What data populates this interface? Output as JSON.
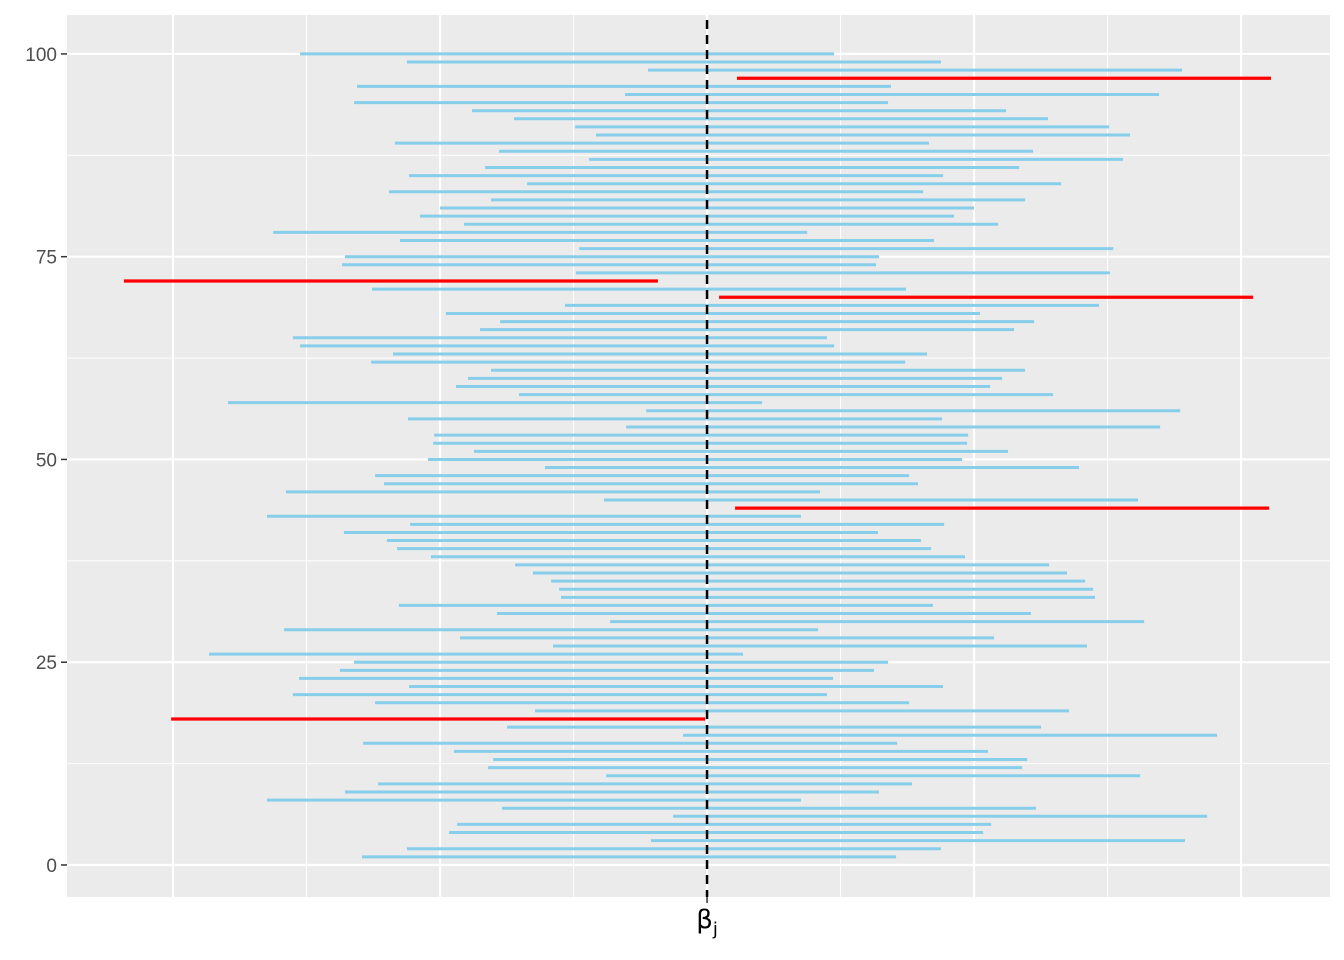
{
  "chart_data": {
    "type": "interval",
    "title": "",
    "xlabel": "",
    "ylabel": "",
    "x_tick_label": {
      "main": "β",
      "sub": "j"
    },
    "x_tick_value": 0,
    "y_ticks": [
      0,
      25,
      50,
      75,
      100
    ],
    "y_tick_labels": [
      "0",
      "25",
      "50",
      "75",
      "100"
    ],
    "xlim": [
      -2.397,
      2.333
    ],
    "ylim": [
      -3.95,
      104.8
    ],
    "x_major_grid": [
      -2,
      -1,
      0,
      1,
      2
    ],
    "x_minor_grid": [
      -1.5,
      -0.5,
      0.5,
      1.5
    ],
    "grid": true,
    "reference_line": {
      "x": 0,
      "style": "dashed",
      "color": "#000000"
    },
    "colors": {
      "covers": "#87CEEB",
      "misses": "#FF0000",
      "panel": "#EBEBEB",
      "grid": "#FFFFFF"
    },
    "index": [
      1,
      2,
      3,
      4,
      5,
      6,
      7,
      8,
      9,
      10,
      11,
      12,
      13,
      14,
      15,
      16,
      17,
      18,
      19,
      20,
      21,
      22,
      23,
      24,
      25,
      26,
      27,
      28,
      29,
      30,
      31,
      32,
      33,
      34,
      35,
      36,
      37,
      38,
      39,
      40,
      41,
      42,
      43,
      44,
      45,
      46,
      47,
      48,
      49,
      50,
      51,
      52,
      53,
      54,
      55,
      56,
      57,
      58,
      59,
      60,
      61,
      62,
      63,
      64,
      65,
      66,
      67,
      68,
      69,
      70,
      71,
      72,
      73,
      74,
      75,
      76,
      77,
      78,
      79,
      80,
      81,
      82,
      83,
      84,
      85,
      86,
      87,
      88,
      89,
      90,
      91,
      92,
      93,
      94,
      95,
      96,
      97,
      98,
      99,
      100
    ],
    "lower": [
      -1.292,
      -1.124,
      -0.21,
      -0.966,
      -0.936,
      -0.127,
      -0.768,
      -1.648,
      -1.356,
      -1.232,
      -0.378,
      -0.82,
      -0.801,
      -0.948,
      -1.288,
      -0.09,
      -0.749,
      -2.007,
      -0.644,
      -1.243,
      -1.551,
      -1.116,
      -1.528,
      -1.375,
      -1.322,
      -1.865,
      -0.577,
      -0.925,
      -1.584,
      -0.363,
      -0.787,
      -1.154,
      -0.547,
      -0.554,
      -0.584,
      -0.652,
      -0.719,
      -1.034,
      -1.161,
      -1.199,
      -1.36,
      -1.112,
      -1.648,
      0.105,
      -0.386,
      -1.577,
      -1.21,
      -1.243,
      -0.607,
      -1.045,
      -0.873,
      -1.026,
      -1.022,
      -0.303,
      -1.12,
      -0.228,
      -1.794,
      -0.704,
      -0.94,
      -0.895,
      -0.809,
      -1.258,
      -1.176,
      -1.524,
      -1.551,
      -0.85,
      -0.775,
      -0.978,
      -0.532,
      0.045,
      -1.255,
      -2.184,
      -0.491,
      -1.367,
      -1.356,
      -0.479,
      -1.15,
      -1.625,
      -0.91,
      -1.075,
      -1.0,
      -0.809,
      -1.191,
      -0.674,
      -1.116,
      -0.831,
      -0.442,
      -0.779,
      -1.169,
      -0.416,
      -0.494,
      -0.723,
      -0.88,
      -1.322,
      -0.307,
      -1.311,
      0.112,
      -0.221,
      -1.124,
      -1.524
    ],
    "upper": [
      0.708,
      0.876,
      1.79,
      1.034,
      1.064,
      1.873,
      1.232,
      0.352,
      0.644,
      0.768,
      1.622,
      1.18,
      1.199,
      1.052,
      0.712,
      1.91,
      1.251,
      -0.007,
      1.356,
      0.757,
      0.449,
      0.884,
      0.472,
      0.625,
      0.678,
      0.135,
      1.423,
      1.075,
      0.416,
      1.637,
      1.213,
      0.846,
      1.453,
      1.446,
      1.416,
      1.348,
      1.281,
      0.966,
      0.839,
      0.801,
      0.64,
      0.888,
      0.352,
      2.105,
      1.614,
      0.423,
      0.79,
      0.757,
      1.393,
      0.955,
      1.127,
      0.974,
      0.978,
      1.697,
      0.88,
      1.772,
      0.206,
      1.296,
      1.06,
      1.105,
      1.191,
      0.742,
      0.824,
      0.476,
      0.449,
      1.15,
      1.225,
      1.022,
      1.468,
      2.045,
      0.745,
      -0.184,
      1.509,
      0.633,
      0.644,
      1.521,
      0.85,
      0.375,
      1.09,
      0.925,
      1.0,
      1.191,
      0.809,
      1.326,
      0.884,
      1.169,
      1.558,
      1.221,
      0.831,
      1.584,
      1.506,
      1.277,
      1.12,
      0.678,
      1.693,
      0.689,
      2.112,
      1.779,
      0.876,
      0.476
    ]
  }
}
